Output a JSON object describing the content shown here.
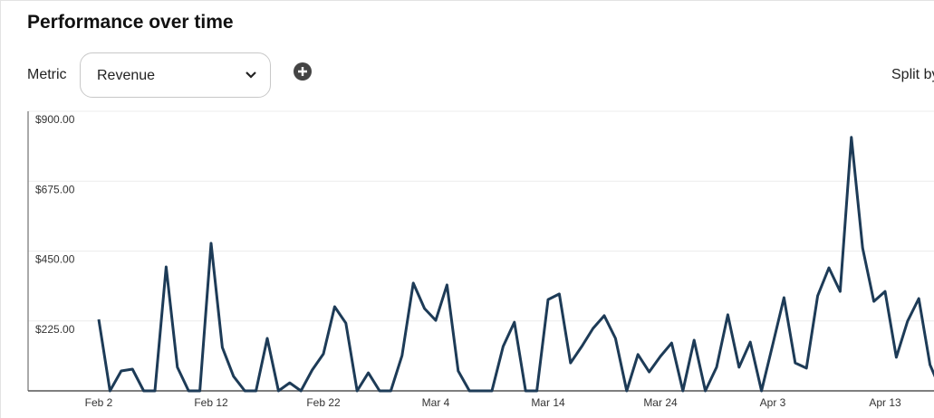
{
  "header": {
    "title": "Performance over time"
  },
  "controls": {
    "metric_label": "Metric",
    "metric_value": "Revenue",
    "split_label": "Split by"
  },
  "chart_data": {
    "type": "line",
    "categories": [
      "Feb 2",
      null,
      null,
      null,
      null,
      null,
      null,
      null,
      null,
      null,
      "Feb 12",
      null,
      null,
      null,
      null,
      null,
      null,
      null,
      null,
      null,
      "Feb 22",
      null,
      null,
      null,
      null,
      null,
      null,
      null,
      null,
      null,
      "Mar 4",
      null,
      null,
      null,
      null,
      null,
      null,
      null,
      null,
      null,
      "Mar 14",
      null,
      null,
      null,
      null,
      null,
      null,
      null,
      null,
      null,
      "Mar 24",
      null,
      null,
      null,
      null,
      null,
      null,
      null,
      null,
      null,
      "Apr 3",
      null,
      null,
      null,
      null,
      null,
      null,
      null,
      null,
      null,
      "Apr 13",
      null,
      null,
      null,
      null,
      null
    ],
    "values": [
      230,
      0,
      64,
      70,
      0,
      0,
      399,
      76,
      0,
      0,
      475,
      140,
      47,
      0,
      0,
      169,
      0,
      26,
      0,
      67,
      119,
      271,
      218,
      0,
      58,
      0,
      0,
      114,
      347,
      265,
      227,
      341,
      64,
      0,
      0,
      0,
      143,
      221,
      0,
      0,
      294,
      312,
      90,
      143,
      201,
      242,
      169,
      0,
      117,
      61,
      111,
      154,
      0,
      163,
      0,
      76,
      245,
      76,
      157,
      0,
      149,
      300,
      90,
      73,
      306,
      396,
      320,
      816,
      460,
      288,
      320,
      108,
      224,
      297,
      84,
      0
    ],
    "color": "#1d3b57",
    "ylim": [
      0,
      900
    ],
    "yticks": [
      {
        "value": 225,
        "label": "$225.00"
      },
      {
        "value": 450,
        "label": "$450.00"
      },
      {
        "value": 675,
        "label": "$675.00"
      },
      {
        "value": 900,
        "label": "$900.00"
      }
    ],
    "grid": true
  }
}
